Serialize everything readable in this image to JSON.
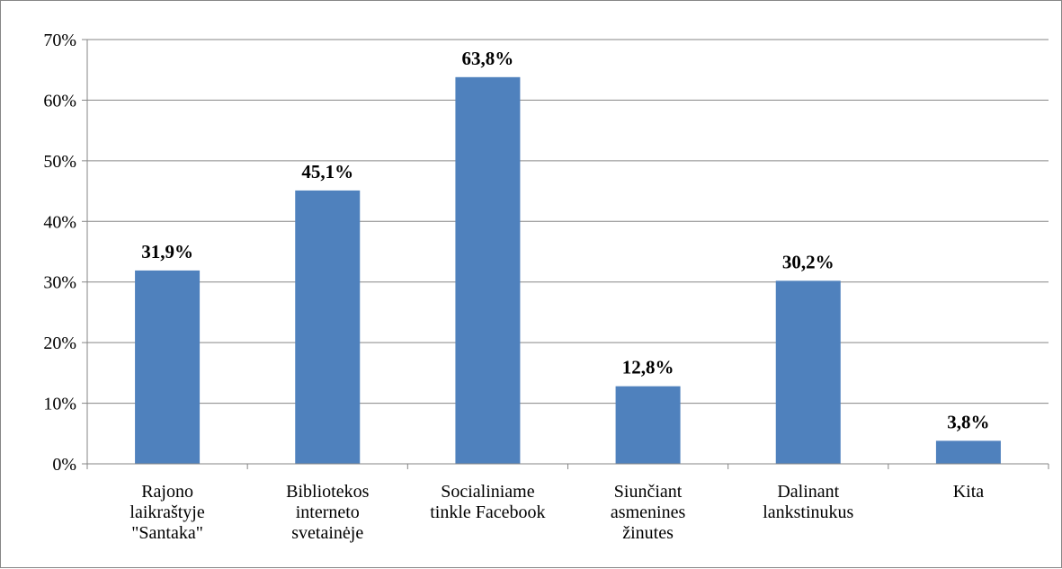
{
  "chart_data": {
    "type": "bar",
    "title": "",
    "xlabel": "",
    "ylabel": "",
    "categories": [
      [
        "Rajono",
        "laikraštyje",
        "\"Santaka\""
      ],
      [
        "Bibliotekos",
        "interneto",
        "svetainėje"
      ],
      [
        "Socialiniame",
        "tinkle Facebook"
      ],
      [
        "Siunčiant",
        "asmenines",
        "žinutes"
      ],
      [
        "Dalinant",
        "lankstinukus"
      ],
      [
        "Kita"
      ]
    ],
    "values": [
      31.9,
      45.1,
      63.8,
      12.8,
      30.2,
      3.8
    ],
    "data_labels": [
      "31,9%",
      "45,1%",
      "63,8%",
      "12,8%",
      "30,2%",
      "3,8%"
    ],
    "ylim": [
      0,
      70
    ],
    "yticks": [
      0,
      10,
      20,
      30,
      40,
      50,
      60,
      70
    ],
    "ytick_labels": [
      "0%",
      "10%",
      "20%",
      "30%",
      "40%",
      "50%",
      "60%",
      "70%"
    ],
    "grid": true,
    "legend": "none",
    "colors": {
      "bar": "#4f81bd",
      "grid": "#868686",
      "axis": "#868686"
    }
  }
}
